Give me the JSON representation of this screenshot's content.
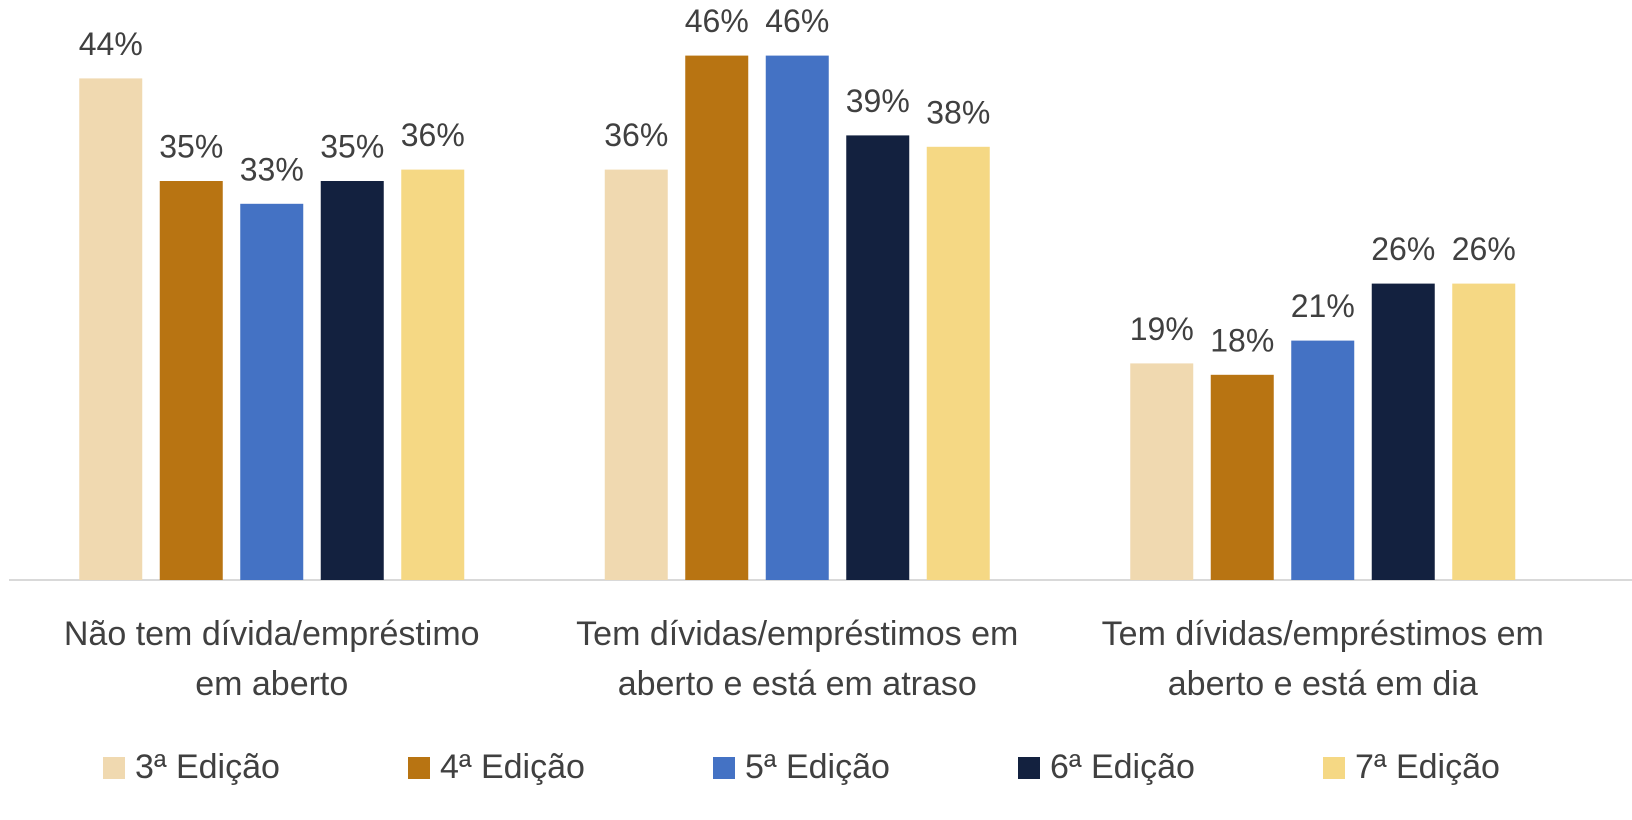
{
  "chart_data": {
    "type": "bar",
    "categories": [
      "Não tem dívida/empréstimo em aberto",
      "Tem dívidas/empréstimos em aberto e está em atraso",
      "Tem dívidas/empréstimos em aberto e está em dia"
    ],
    "series": [
      {
        "name": "3ª Edição",
        "color": "#f0d9b0",
        "values": [
          44,
          36,
          19
        ],
        "value_labels": [
          "44%",
          "36%",
          "19%"
        ]
      },
      {
        "name": "4ª Edição",
        "color": "#b87412",
        "values": [
          35,
          46,
          18
        ],
        "value_labels": [
          "35%",
          "46%",
          "18%"
        ]
      },
      {
        "name": "5ª Edição",
        "color": "#4472c4",
        "values": [
          33,
          46,
          21
        ],
        "value_labels": [
          "33%",
          "46%",
          "21%"
        ]
      },
      {
        "name": "6ª Edição",
        "color": "#13213f",
        "values": [
          35,
          39,
          26
        ],
        "value_labels": [
          "35%",
          "39%",
          "26%"
        ]
      },
      {
        "name": "7ª Edição",
        "color": "#f5d884",
        "values": [
          36,
          38,
          26
        ],
        "value_labels": [
          "36%",
          "38%",
          "26%"
        ]
      }
    ],
    "ylim": [
      0,
      50
    ],
    "legend": "bottom"
  }
}
